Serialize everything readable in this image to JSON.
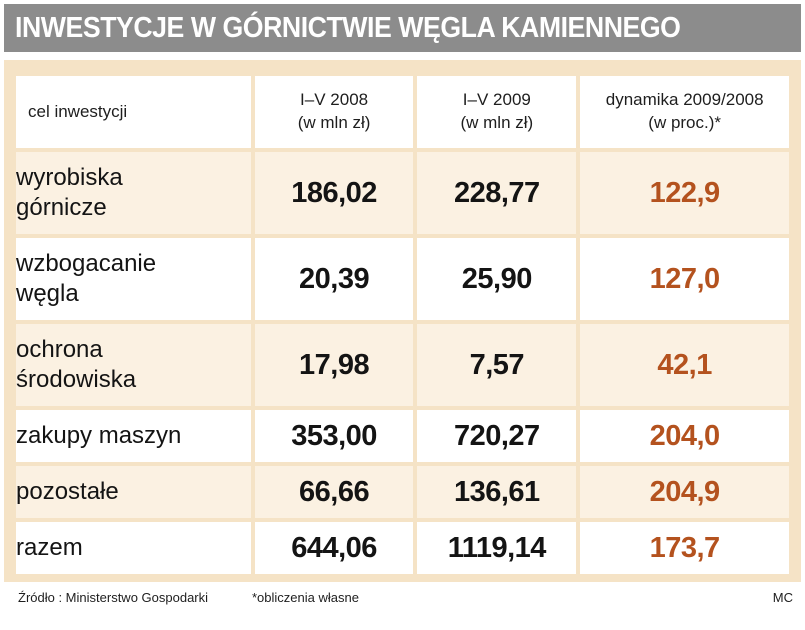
{
  "title": "INWESTYCJE W GÓRNICTWIE WĘGLA KAMIENNEGO",
  "colors": {
    "title_bg": "#8c8c8c",
    "frame_bg": "#f5e3c6",
    "row_tint": "#fbf1e2",
    "dynamics_text": "#b4521e"
  },
  "table": {
    "headers": {
      "purpose": "cel inwestycji",
      "y2008_line1": "I–V 2008",
      "y2008_line2": "(w mln zł)",
      "y2009_line1": "I–V 2009",
      "y2009_line2": "(w mln zł)",
      "dyn_line1": "dynamika 2009/2008",
      "dyn_line2": "(w proc.)*"
    },
    "rows": [
      {
        "label_line1": "wyrobiska",
        "label_line2": "górnicze",
        "v2008": "186,02",
        "v2009": "228,77",
        "dyn": "122,9"
      },
      {
        "label_line1": "wzbogacanie",
        "label_line2": "węgla",
        "v2008": "20,39",
        "v2009": "25,90",
        "dyn": "127,0"
      },
      {
        "label_line1": "ochrona",
        "label_line2": "środowiska",
        "v2008": "17,98",
        "v2009": "7,57",
        "dyn": "42,1"
      },
      {
        "label": "zakupy maszyn",
        "v2008": "353,00",
        "v2009": "720,27",
        "dyn": "204,0"
      },
      {
        "label": "pozostałe",
        "v2008": "66,66",
        "v2009": "136,61",
        "dyn": "204,9"
      },
      {
        "label": "razem",
        "v2008": "644,06",
        "v2009": "1119,14",
        "dyn": "173,7"
      }
    ]
  },
  "footer": {
    "source": "Źródło : Ministerstwo Gospodarki",
    "note": "*obliczenia własne",
    "author": "MC"
  }
}
